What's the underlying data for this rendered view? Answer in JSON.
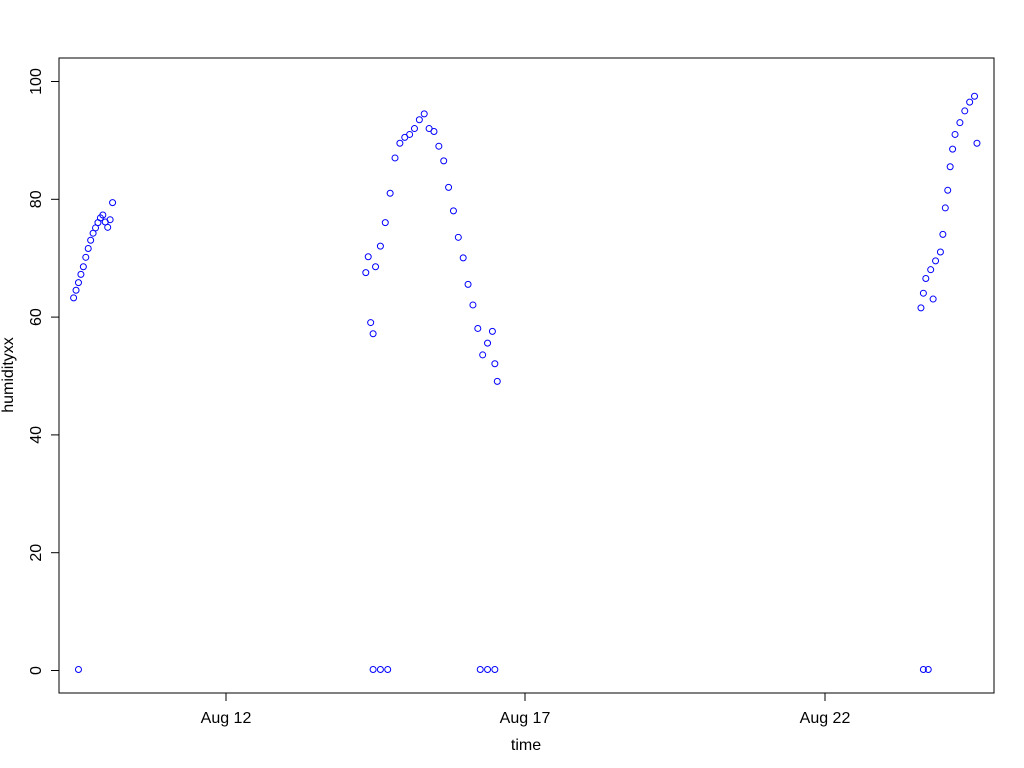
{
  "chart_data": {
    "type": "scatter",
    "xlabel": "time",
    "ylabel": "humidityxx",
    "x_ticks": [
      "Aug 12",
      "Aug 17",
      "Aug 22"
    ],
    "y_ticks": [
      "0",
      "20",
      "40",
      "60",
      "80",
      "100"
    ],
    "xlim": [
      "2023-08-09 06:00",
      "2023-08-25 06:00"
    ],
    "ylim": [
      -4,
      104
    ],
    "point_color": "#0000ff",
    "marker": "open-circle",
    "series": [
      {
        "points": [
          [
            "2023-08-09 12:00",
            63.2
          ],
          [
            "2023-08-09 13:00",
            64.5
          ],
          [
            "2023-08-09 14:00",
            65.8
          ],
          [
            "2023-08-09 15:00",
            67.2
          ],
          [
            "2023-08-09 16:00",
            68.5
          ],
          [
            "2023-08-09 17:00",
            70.1
          ],
          [
            "2023-08-09 18:00",
            71.6
          ],
          [
            "2023-08-09 19:00",
            73.0
          ],
          [
            "2023-08-09 20:00",
            74.2
          ],
          [
            "2023-08-09 21:00",
            75.1
          ],
          [
            "2023-08-09 22:00",
            76.0
          ],
          [
            "2023-08-09 23:00",
            76.8
          ],
          [
            "2023-08-10 00:00",
            77.3
          ],
          [
            "2023-08-10 01:00",
            76.1
          ],
          [
            "2023-08-10 02:00",
            75.2
          ],
          [
            "2023-08-10 03:00",
            76.5
          ],
          [
            "2023-08-10 04:00",
            79.4
          ],
          [
            "2023-08-09 14:00",
            0.0
          ],
          [
            "2023-08-14 12:00",
            67.5
          ],
          [
            "2023-08-14 13:00",
            70.2
          ],
          [
            "2023-08-14 14:00",
            59.0
          ],
          [
            "2023-08-14 15:00",
            57.1
          ],
          [
            "2023-08-14 16:00",
            68.5
          ],
          [
            "2023-08-14 18:00",
            72.0
          ],
          [
            "2023-08-14 20:00",
            76.0
          ],
          [
            "2023-08-14 22:00",
            81.0
          ],
          [
            "2023-08-15 00:00",
            87.0
          ],
          [
            "2023-08-15 02:00",
            89.5
          ],
          [
            "2023-08-15 04:00",
            90.5
          ],
          [
            "2023-08-15 06:00",
            91.0
          ],
          [
            "2023-08-15 08:00",
            92.0
          ],
          [
            "2023-08-15 10:00",
            93.5
          ],
          [
            "2023-08-15 12:00",
            94.5
          ],
          [
            "2023-08-15 14:00",
            92.0
          ],
          [
            "2023-08-15 16:00",
            91.5
          ],
          [
            "2023-08-15 18:00",
            89.0
          ],
          [
            "2023-08-15 20:00",
            86.5
          ],
          [
            "2023-08-15 22:00",
            82.0
          ],
          [
            "2023-08-16 00:00",
            78.0
          ],
          [
            "2023-08-16 02:00",
            73.5
          ],
          [
            "2023-08-16 04:00",
            70.0
          ],
          [
            "2023-08-16 06:00",
            65.5
          ],
          [
            "2023-08-16 08:00",
            62.0
          ],
          [
            "2023-08-16 10:00",
            58.0
          ],
          [
            "2023-08-16 12:00",
            53.5
          ],
          [
            "2023-08-16 14:00",
            55.5
          ],
          [
            "2023-08-16 16:00",
            57.5
          ],
          [
            "2023-08-16 17:00",
            52.0
          ],
          [
            "2023-08-16 18:00",
            49.0
          ],
          [
            "2023-08-14 15:00",
            0.0
          ],
          [
            "2023-08-14 18:00",
            0.0
          ],
          [
            "2023-08-14 21:00",
            0.0
          ],
          [
            "2023-08-16 11:00",
            0.0
          ],
          [
            "2023-08-16 14:00",
            0.0
          ],
          [
            "2023-08-16 17:00",
            0.0
          ],
          [
            "2023-08-24 00:00",
            61.5
          ],
          [
            "2023-08-24 01:00",
            64.0
          ],
          [
            "2023-08-24 02:00",
            66.5
          ],
          [
            "2023-08-24 04:00",
            68.0
          ],
          [
            "2023-08-24 05:00",
            63.0
          ],
          [
            "2023-08-24 06:00",
            69.5
          ],
          [
            "2023-08-24 08:00",
            71.0
          ],
          [
            "2023-08-24 09:00",
            74.0
          ],
          [
            "2023-08-24 10:00",
            78.5
          ],
          [
            "2023-08-24 11:00",
            81.5
          ],
          [
            "2023-08-24 12:00",
            85.5
          ],
          [
            "2023-08-24 13:00",
            88.5
          ],
          [
            "2023-08-24 14:00",
            91.0
          ],
          [
            "2023-08-24 16:00",
            93.0
          ],
          [
            "2023-08-24 18:00",
            95.0
          ],
          [
            "2023-08-24 20:00",
            96.5
          ],
          [
            "2023-08-24 22:00",
            97.5
          ],
          [
            "2023-08-24 23:00",
            89.5
          ],
          [
            "2023-08-24 01:00",
            0.0
          ],
          [
            "2023-08-24 03:00",
            0.0
          ]
        ]
      }
    ]
  }
}
